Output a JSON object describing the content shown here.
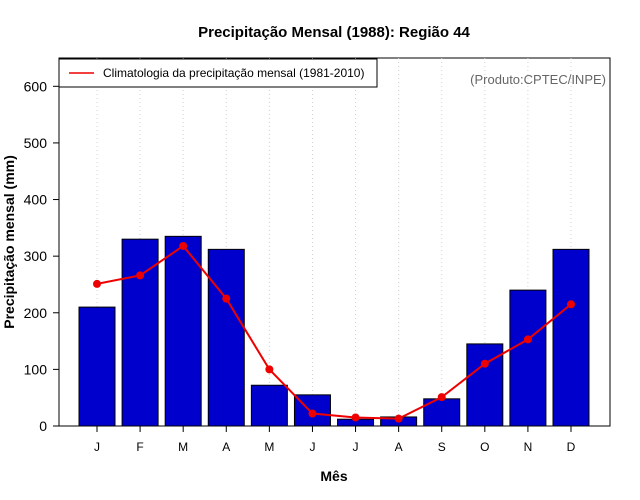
{
  "chart_data": {
    "type": "bar",
    "title": "Precipitação Mensal (1988): Região 44",
    "xlabel": "Mês",
    "ylabel": "Precipitação mensal (mm)",
    "credit": "(Produto:CPTEC/INPE)",
    "ylim": [
      0,
      650
    ],
    "yticks": [
      0,
      100,
      200,
      300,
      400,
      500,
      600
    ],
    "categories": [
      "J",
      "F",
      "M",
      "A",
      "M",
      "J",
      "J",
      "A",
      "S",
      "O",
      "N",
      "D"
    ],
    "series": [
      {
        "name": "Precipitação mensal 1988",
        "type": "bar",
        "color": "#0000cc",
        "values": [
          210,
          330,
          335,
          312,
          72,
          55,
          12,
          16,
          48,
          145,
          240,
          312
        ]
      },
      {
        "name": "Climatologia da precipitação mensal (1981-2010)",
        "type": "line",
        "color": "#ee0000",
        "values": [
          251,
          266,
          318,
          225,
          100,
          22,
          15,
          13,
          51,
          110,
          153,
          215
        ]
      }
    ],
    "legend": {
      "position": "top-left",
      "entries": [
        "Climatologia da precipitação mensal (1981-2010)"
      ]
    },
    "grid": "vertical dotted"
  }
}
